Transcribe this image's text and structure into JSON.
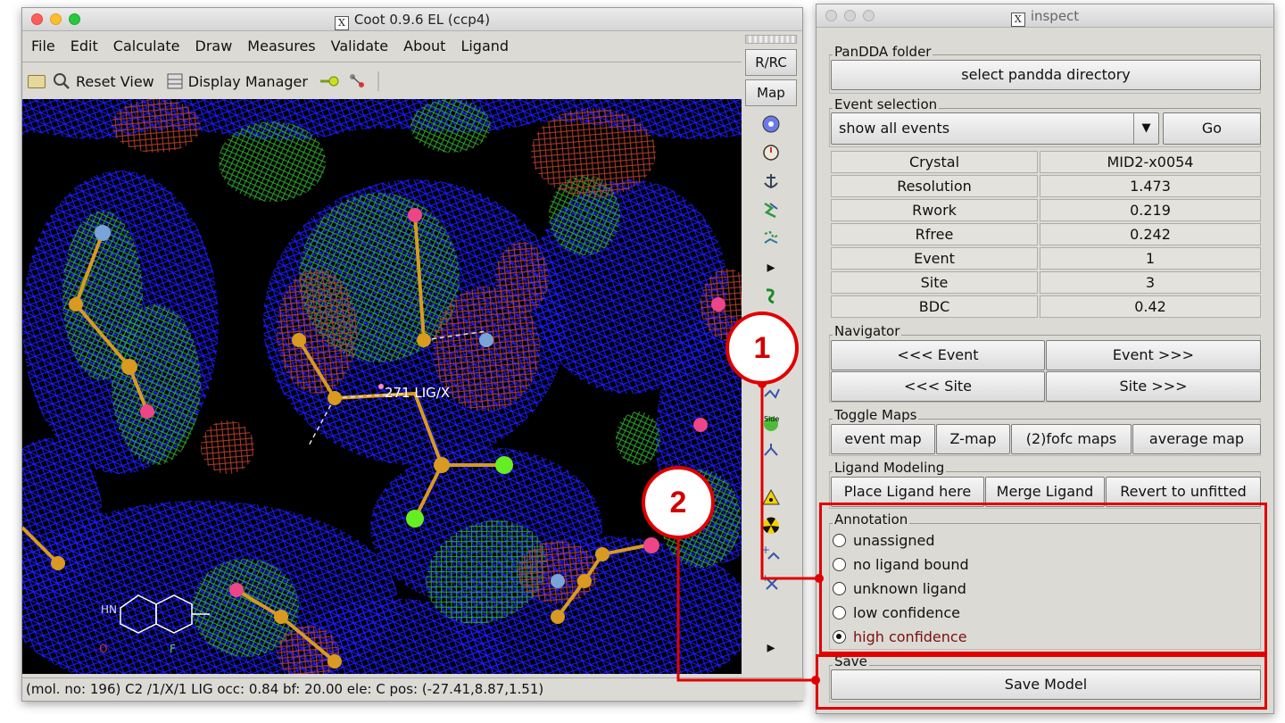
{
  "coot": {
    "title": "Coot 0.9.6 EL (ccp4)",
    "menu": [
      "File",
      "Edit",
      "Calculate",
      "Draw",
      "Measures",
      "Validate",
      "About",
      "Ligand"
    ],
    "toolbar": {
      "reset_view": "Reset View",
      "display_manager": "Display Manager"
    },
    "side_buttons": {
      "rrc": "R/RC",
      "map": "Map"
    },
    "viewport_label": "271 LIG/X",
    "status": "(mol. no: 196)  C2 /1/X/1 LIG occ: 0.84 bf: 20.00 ele:  C pos: (-27.41,8.87,1.51)",
    "map_colors": {
      "blue": "#1a1aff",
      "green": "#22aa22",
      "red": "#c0392b"
    }
  },
  "inspect": {
    "title": "inspect",
    "pandda_folder": {
      "label": "PanDDA folder",
      "button": "select pandda directory"
    },
    "event_selection": {
      "label": "Event selection",
      "selected": "show all events",
      "go": "Go"
    },
    "table": [
      {
        "key": "Crystal",
        "value": "MID2-x0054"
      },
      {
        "key": "Resolution",
        "value": "1.473"
      },
      {
        "key": "Rwork",
        "value": "0.219"
      },
      {
        "key": "Rfree",
        "value": "0.242"
      },
      {
        "key": "Event",
        "value": "1"
      },
      {
        "key": "Site",
        "value": "3"
      },
      {
        "key": "BDC",
        "value": "0.42"
      }
    ],
    "navigator": {
      "label": "Navigator",
      "prev_event": "<<< Event",
      "next_event": "Event >>>",
      "prev_site": "<<< Site",
      "next_site": "Site >>>"
    },
    "toggle_maps": {
      "label": "Toggle Maps",
      "event_map": "event map",
      "z_map": "Z-map",
      "fofc": "(2)fofc maps",
      "average": "average map"
    },
    "ligand_modeling": {
      "label": "Ligand Modeling",
      "place": "Place Ligand here",
      "merge": "Merge Ligand",
      "revert": "Revert to unfitted"
    },
    "annotation": {
      "label": "Annotation",
      "options": [
        "unassigned",
        "no ligand bound",
        "unknown ligand",
        "low confidence",
        "high confidence"
      ],
      "selected": "high confidence"
    },
    "save": {
      "label": "Save",
      "button": "Save Model"
    }
  },
  "callouts": [
    "1",
    "2"
  ],
  "accent": "#e00000"
}
